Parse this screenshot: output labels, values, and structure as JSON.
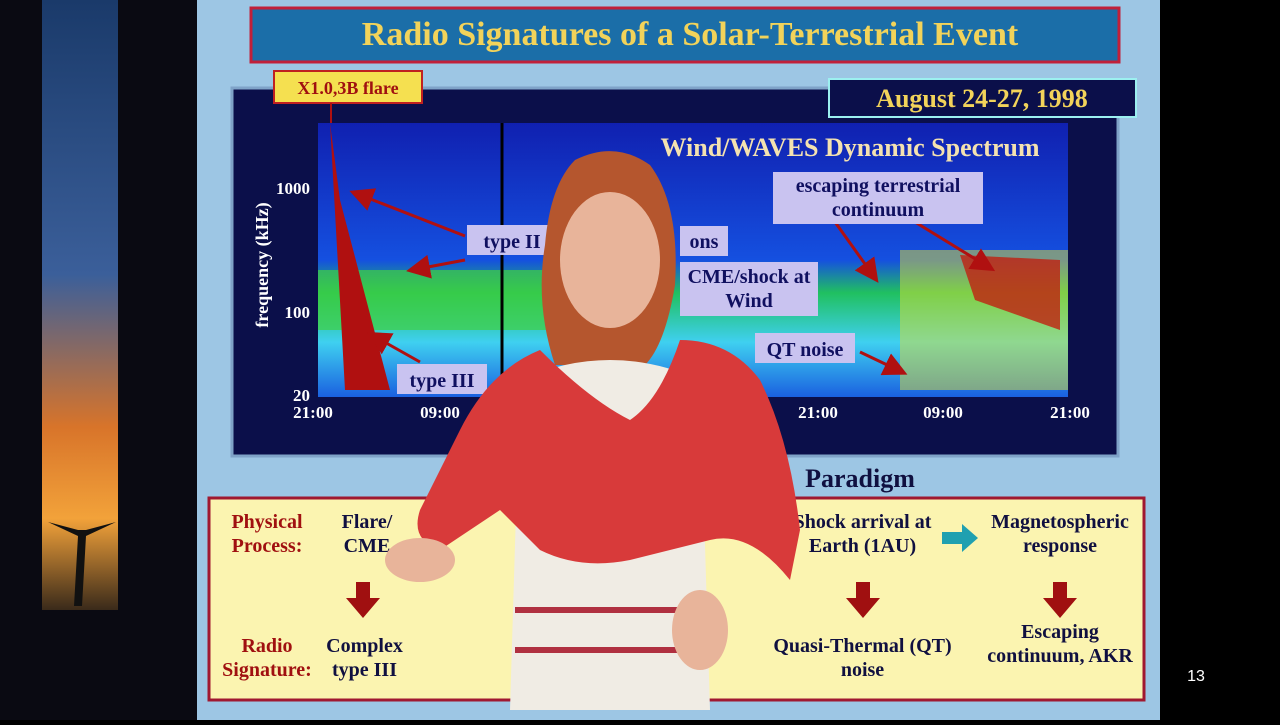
{
  "slide": {
    "title": "Radio Signatures of a Solar-Terrestrial Event",
    "date": "August 24-27, 1998",
    "flare_label": "X1.0,3B flare",
    "page_number": "13"
  },
  "spectrum": {
    "title": "Wind/WAVES Dynamic Spectrum",
    "y_axis_label": "frequency (kHz)",
    "y_ticks": [
      "1000",
      "100",
      "20"
    ],
    "x_ticks": [
      "21:00",
      "09:00",
      "21:00",
      "09:00",
      "21:00"
    ],
    "annotations": {
      "type_ii": "type II",
      "type_iii": "type III",
      "ons": "ons",
      "cme_shock": "CME/shock at Wind",
      "qt_noise": "QT noise",
      "escaping": "escaping terrestrial continuum"
    }
  },
  "paradigm": {
    "heading": "Paradigm",
    "row_labels": {
      "process": "Physical Process:",
      "signature": "Radio Signature:"
    },
    "processes": [
      "Flare/ CME",
      "Shock arrival at Earth (1AU)",
      "Magnetospheric response"
    ],
    "signatures": [
      "Complex type III",
      "Quasi-Thermal (QT) noise",
      "Escaping continuum, AKR"
    ]
  }
}
